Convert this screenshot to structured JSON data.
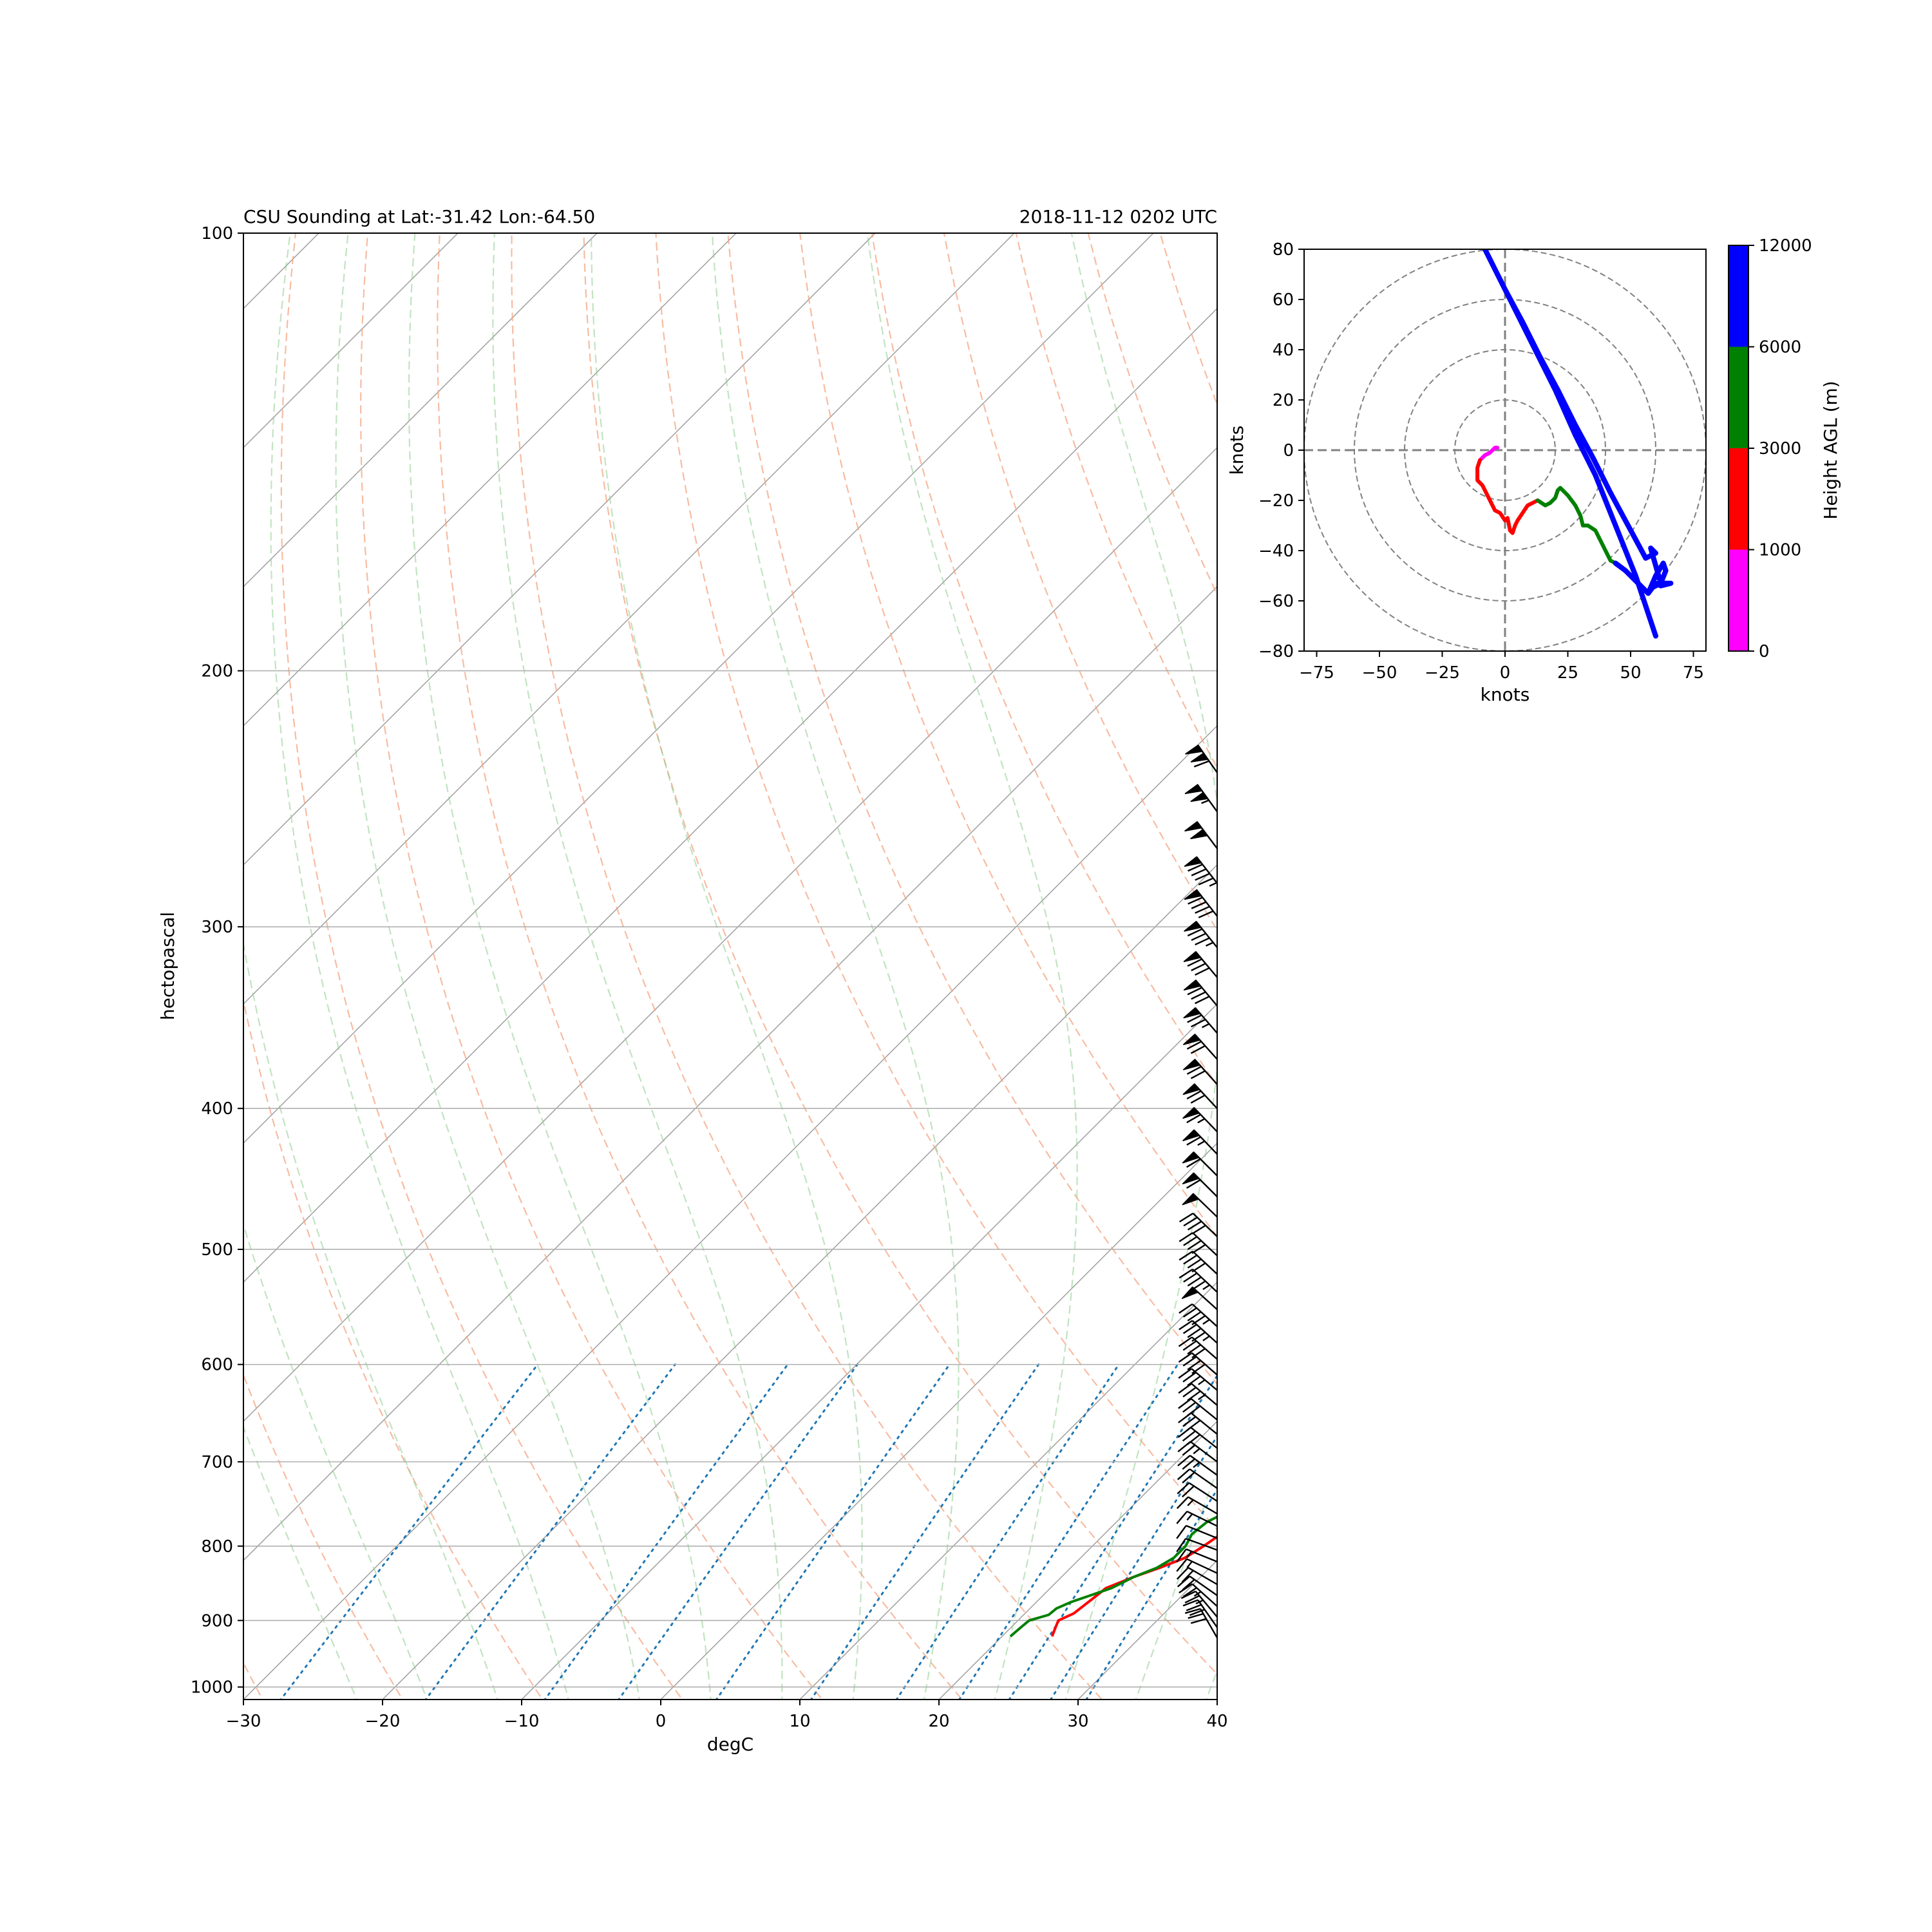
{
  "chart_data": [
    {
      "type": "line",
      "subtype": "skew-T log-P sounding",
      "title_left": "CSU Sounding at Lat:-31.42 Lon:-64.50",
      "title_right": "2018-11-12 0202 UTC",
      "xlabel": "degC",
      "ylabel": "hectopascal",
      "xlim": [
        -30,
        40
      ],
      "ylim": [
        1020,
        100
      ],
      "y_scale": "log",
      "grid": true,
      "xticks": [
        -30,
        -20,
        -10,
        0,
        10,
        20,
        30,
        40
      ],
      "xtick_labels": [
        "−30",
        "−20",
        "−10",
        "0",
        "10",
        "20",
        "30",
        "40"
      ],
      "yticks": [
        1000,
        900,
        800,
        700,
        600,
        500,
        400,
        300,
        200,
        100
      ],
      "ytick_labels": [
        "1000",
        "900",
        "800",
        "700",
        "600",
        "500",
        "400",
        "300",
        "200",
        "100"
      ],
      "background_lines": {
        "dry_adiabats": "dashed, salmon",
        "moist_adiabats": "dashed, light green",
        "mixing_ratio_lines": "dotted, blue",
        "isotherms": "solid, gray (skewed)"
      },
      "series": [
        {
          "color": "#ff0000",
          "points": [
            [
              923,
              23.6
            ],
            [
              910,
              23.2
            ],
            [
              900,
              22.9
            ],
            [
              890,
              23.5
            ],
            [
              870,
              23.8
            ],
            [
              855,
              24.0
            ],
            [
              840,
              25.2
            ],
            [
              828,
              26.4
            ],
            [
              815,
              27.5
            ],
            [
              800,
              28.0
            ],
            [
              780,
              28.5
            ],
            [
              760,
              28.6
            ],
            [
              745,
              28.2
            ],
            [
              730,
              28.3
            ],
            [
              715,
              27.5
            ],
            [
              700,
              26.6
            ],
            [
              690,
              26.5
            ],
            [
              675,
              27.0
            ],
            [
              660,
              27.6
            ],
            [
              640,
              27.2
            ],
            [
              625,
              26.8
            ],
            [
              610,
              26.7
            ],
            [
              595,
              26.8
            ],
            [
              580,
              27.3
            ],
            [
              565,
              27.4
            ],
            [
              548,
              28.0
            ],
            [
              535,
              28.2
            ],
            [
              520,
              28.0
            ],
            [
              505,
              27.6
            ],
            [
              490,
              27.9
            ],
            [
              475,
              28.7
            ],
            [
              460,
              29.5
            ],
            [
              445,
              30.2
            ],
            [
              430,
              30.8
            ],
            [
              415,
              31.3
            ],
            [
              405,
              32.0
            ],
            [
              398,
              32.4
            ],
            [
              390,
              32.3
            ],
            [
              378,
              32.0
            ],
            [
              368,
              31.6
            ],
            [
              360,
              30.3
            ],
            [
              352,
              29.6
            ],
            [
              345,
              28.7
            ],
            [
              340,
              24.2
            ],
            [
              335,
              25.5
            ],
            [
              327,
              22.4
            ],
            [
              320,
              21.8
            ],
            [
              315,
              22.6
            ],
            [
              312,
              22.4
            ],
            [
              308,
              15.3
            ],
            [
              305,
              22.0
            ],
            [
              303,
              22.8
            ],
            [
              300,
              22.3
            ],
            [
              297,
              22.1
            ],
            [
              292,
              22.7
            ],
            [
              286,
              22.9
            ],
            [
              280,
              22.8
            ],
            [
              272,
              22.6
            ],
            [
              262,
              22.3
            ],
            [
              253,
              21.8
            ],
            [
              246,
              21.4
            ],
            [
              240,
              21.4
            ],
            [
              233,
              21.5
            ],
            [
              228,
              21.6
            ]
          ]
        },
        {
          "color": "#008000",
          "points": [
            [
              923,
              20.6
            ],
            [
              910,
              20.7
            ],
            [
              900,
              20.8
            ],
            [
              892,
              21.8
            ],
            [
              883,
              21.9
            ],
            [
              874,
              22.5
            ],
            [
              865,
              23.4
            ],
            [
              855,
              24.4
            ],
            [
              840,
              25.2
            ],
            [
              828,
              26.2
            ],
            [
              815,
              26.7
            ],
            [
              800,
              26.7
            ],
            [
              785,
              26.3
            ],
            [
              770,
              26.5
            ],
            [
              755,
              27.4
            ],
            [
              744,
              27.5
            ],
            [
              735,
              26.7
            ],
            [
              728,
              26.2
            ],
            [
              721,
              26.8
            ],
            [
              712,
              27.6
            ],
            [
              705,
              28.0
            ],
            [
              695,
              28.4
            ],
            [
              683,
              28.9
            ],
            [
              670,
              29.4
            ],
            [
              660,
              29.6
            ],
            [
              648,
              29.8
            ],
            [
              635,
              29.8
            ],
            [
              620,
              29.8
            ],
            [
              608,
              29.5
            ],
            [
              595,
              29.0
            ],
            [
              580,
              28.6
            ],
            [
              570,
              27.8
            ],
            [
              562,
              26.5
            ],
            [
              553,
              25.4
            ],
            [
              546,
              24.1
            ],
            [
              540,
              22.0
            ],
            [
              533,
              20.9
            ],
            [
              525,
              18.7
            ],
            [
              518,
              17.3
            ],
            [
              510,
              15.6
            ],
            [
              503,
              14.2
            ],
            [
              496,
              12.9
            ],
            [
              490,
              12.6
            ],
            [
              483,
              13.6
            ],
            [
              476,
              14.9
            ],
            [
              472,
              16.5
            ],
            [
              465,
              26.3
            ],
            [
              459,
              32.3
            ],
            [
              450,
              36.1
            ],
            [
              442,
              38.3
            ],
            [
              435,
              29.8
            ],
            [
              428,
              24.4
            ],
            [
              422,
              24.1
            ],
            [
              415,
              25.9
            ],
            [
              408,
              31.1
            ],
            [
              402,
              35.6
            ],
            [
              397,
              37.7
            ],
            [
              391,
              34.2
            ],
            [
              385,
              32.8
            ],
            [
              378,
              33.4
            ],
            [
              372,
              34.0
            ],
            [
              365,
              32.8
            ],
            [
              357,
              29.8
            ],
            [
              350,
              27.5
            ],
            [
              344,
              28.6
            ],
            [
              340,
              32.7
            ],
            [
              338,
              30.6
            ],
            [
              334,
              27.2
            ],
            [
              328,
              28.5
            ],
            [
              322,
              23.7
            ],
            [
              317,
              26.6
            ],
            [
              311,
              29.8
            ],
            [
              306,
              31.7
            ],
            [
              301,
              31.0
            ],
            [
              297,
              31.0
            ],
            [
              293,
              31.5
            ],
            [
              289,
              31.2
            ],
            [
              285,
              31.0
            ],
            [
              281,
              30.6
            ],
            [
              277,
              15.2
            ],
            [
              274,
              14.8
            ],
            [
              268,
              14.3
            ],
            [
              262,
              14.3
            ],
            [
              256,
              13.5
            ],
            [
              250,
              13.5
            ],
            [
              245,
              14.5
            ],
            [
              237,
              14.8
            ],
            [
              229,
              14.8
            ]
          ]
        }
      ],
      "wind_barbs": {
        "pressures_hpa": [
          925,
          910,
          895,
          880,
          865,
          850,
          835,
          820,
          805,
          790,
          775,
          760,
          745,
          730,
          715,
          700,
          685,
          670,
          655,
          640,
          625,
          610,
          595,
          580,
          565,
          550,
          535,
          520,
          505,
          490,
          475,
          460,
          445,
          430,
          415,
          400,
          385,
          370,
          355,
          340,
          325,
          310,
          295,
          280,
          265,
          250,
          235
        ],
        "speed_kt": [
          28,
          28,
          27,
          25,
          22,
          20,
          17,
          14,
          12,
          12,
          14,
          17,
          20,
          22,
          25,
          27,
          28,
          30,
          32,
          34,
          36,
          39,
          42,
          45,
          46,
          48,
          45,
          42,
          40,
          40,
          48,
          58,
          62,
          64,
          66,
          68,
          70,
          72,
          75,
          78,
          80,
          85,
          90,
          95,
          100,
          105,
          110
        ],
        "direction_deg": [
          330,
          325,
          320,
          312,
          305,
          300,
          295,
          292,
          290,
          292,
          296,
          300,
          303,
          305,
          306,
          307,
          308,
          309,
          309,
          310,
          310,
          311,
          311,
          312,
          312,
          312,
          313,
          313,
          313,
          314,
          314,
          315,
          315,
          316,
          316,
          317,
          318,
          318,
          319,
          320,
          320,
          321,
          322,
          322,
          323,
          324,
          325
        ]
      }
    },
    {
      "type": "line",
      "subtype": "hodograph",
      "xlabel": "knots",
      "ylabel": "knots",
      "xlim": [
        -80,
        80
      ],
      "ylim": [
        -80,
        80
      ],
      "xticks": [
        -75,
        -50,
        -25,
        0,
        25,
        50,
        75
      ],
      "xtick_labels": [
        "−75",
        "−50",
        "−25",
        "0",
        "25",
        "50",
        "75"
      ],
      "yticks": [
        -80,
        -60,
        -40,
        -20,
        0,
        20,
        40,
        60,
        80
      ],
      "ytick_labels": [
        "−80",
        "−60",
        "−40",
        "−20",
        "0",
        "20",
        "40",
        "60",
        "80"
      ],
      "range_rings_kt": [
        20,
        40,
        60,
        80
      ],
      "colorbar": {
        "label": "Height AGL (m)",
        "bounds": [
          0,
          1000,
          3000,
          6000,
          12000
        ],
        "tick_labels": [
          "0",
          "1000",
          "3000",
          "6000",
          "12000"
        ],
        "colors": [
          "#ff00ff",
          "#ff0000",
          "#008000",
          "#0000ff"
        ]
      },
      "segments": [
        {
          "color": "#ff00ff",
          "u": [
            -3,
            -4,
            -6,
            -8,
            -10
          ],
          "v": [
            1,
            1,
            -1,
            -2,
            -4
          ]
        },
        {
          "color": "#ff0000",
          "u": [
            -10,
            -11,
            -11,
            -9,
            -7,
            -6,
            -4,
            -2,
            0,
            1,
            2,
            3,
            4,
            5,
            7,
            9,
            11,
            13
          ],
          "v": [
            -4,
            -7,
            -12,
            -14,
            -18,
            -20,
            -24,
            -25,
            -28,
            -27,
            -32,
            -33,
            -30,
            -28,
            -25,
            -22,
            -21,
            -20
          ]
        },
        {
          "color": "#008000",
          "u": [
            13,
            16,
            18,
            20,
            21,
            22,
            25,
            28,
            30,
            31,
            33,
            36,
            38,
            40,
            42,
            44
          ],
          "v": [
            -20,
            -22,
            -21,
            -19,
            -16,
            -15,
            -18,
            -22,
            -26,
            -30,
            -30,
            -32,
            -36,
            -40,
            -44,
            -45
          ]
        },
        {
          "color": "#0000ff",
          "u": [
            44,
            48,
            51,
            54,
            57,
            60,
            63,
            64,
            62,
            58,
            57,
            60,
            62,
            66,
            62,
            58,
            60,
            56,
            49,
            42,
            35,
            28,
            21,
            14,
            7,
            0,
            -7,
            -14,
            2,
            10,
            20,
            28,
            36,
            44,
            52,
            60
          ],
          "v": [
            -45,
            -48,
            -51,
            -54,
            -57,
            -50,
            -45,
            -48,
            -53,
            -55,
            -57,
            -53,
            -54,
            -53,
            -53,
            -39,
            -41,
            -43,
            -30,
            -17,
            -3,
            10,
            24,
            37,
            51,
            64,
            78,
            92,
            60,
            44,
            24,
            6,
            -10,
            -30,
            -50,
            -74
          ]
        }
      ]
    }
  ]
}
